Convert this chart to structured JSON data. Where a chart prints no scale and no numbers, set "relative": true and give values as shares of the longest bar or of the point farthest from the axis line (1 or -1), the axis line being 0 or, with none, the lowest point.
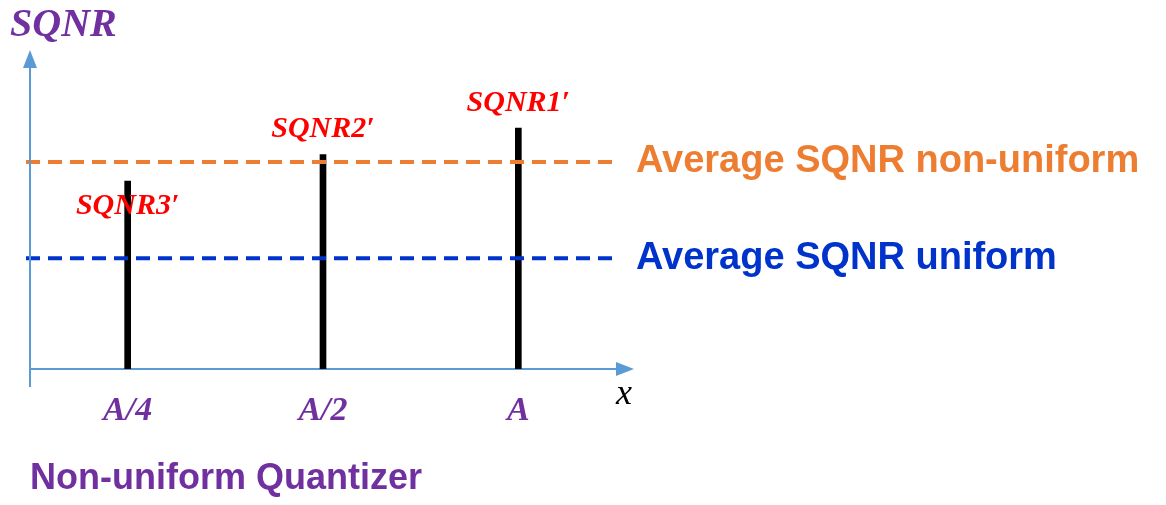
{
  "chart_data": {
    "type": "bar",
    "title": "Non-uniform Quantizer",
    "xlabel": "x",
    "ylabel": "SQNR",
    "categories": [
      "A/4",
      "A/2",
      "A"
    ],
    "series": [
      {
        "color": "#000000",
        "values": [
          0.78,
          0.89,
          1
        ]
      }
    ],
    "relative": true,
    "annotations": [
      {
        "text": "SQNR3′",
        "x": "A/4",
        "y": 0.78
      },
      {
        "text": "SQNR2′",
        "x": "A/2",
        "y": 0.89
      },
      {
        "text": "SQNR1′",
        "x": "A",
        "y": 1
      }
    ],
    "ref_lines": [
      {
        "axis": "y",
        "value": 0.86,
        "label": "Average SQNR non-uniform",
        "color": "#ed7d31",
        "line_style": "dashed"
      },
      {
        "axis": "y",
        "value": 0.46,
        "label": "Average SQNR uniform",
        "color": "#0033cc",
        "line_style": "dashed"
      }
    ]
  }
}
